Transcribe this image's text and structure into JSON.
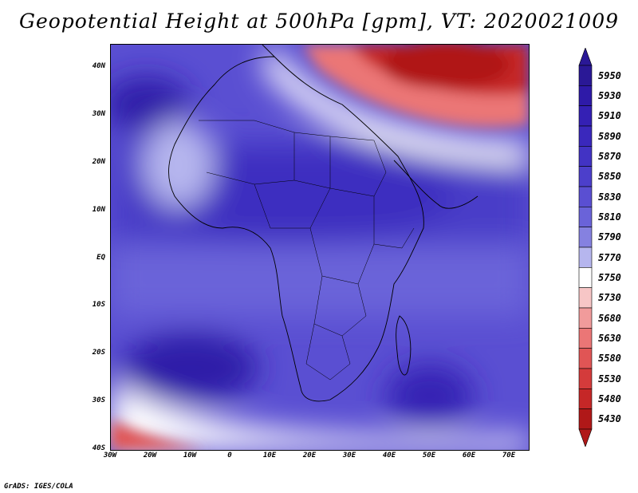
{
  "title": "Geopotential Height at 500hPa [gpm], VT: 2020021009",
  "map": {
    "variable": "Geopotential Height",
    "level": "500hPa",
    "units": "gpm",
    "valid_time": "2020021009",
    "lat_labels": [
      "40N",
      "30N",
      "20N",
      "10N",
      "EQ",
      "10S",
      "20S",
      "30S",
      "40S"
    ],
    "lon_labels": [
      "30W",
      "20W",
      "10W",
      "0",
      "10E",
      "20E",
      "30E",
      "40E",
      "50E",
      "60E",
      "70E"
    ],
    "features": {
      "highs": [
        "subtropical-high-north-atlantic",
        "subtropical-high-south-atlantic",
        "subtropical-high-south-indian"
      ],
      "lows": [
        "trough-middle-east-asia",
        "trough-south-of-south-atlantic"
      ]
    }
  },
  "colorbar": {
    "levels": [
      "5950",
      "5930",
      "5910",
      "5890",
      "5870",
      "5850",
      "5830",
      "5810",
      "5790",
      "5770",
      "5750",
      "5730",
      "5680",
      "5630",
      "5580",
      "5530",
      "5480",
      "5430"
    ],
    "colors": [
      "#2a1896",
      "#2e1aa8",
      "#3420b4",
      "#3a28bc",
      "#4233c4",
      "#4c3fcb",
      "#5a4fd2",
      "#6a63d9",
      "#8581e0",
      "#b6b6ee",
      "#ffffff",
      "#f7c6c6",
      "#f19b9b",
      "#eb7676",
      "#e05555",
      "#d43b3b",
      "#c52727",
      "#b01818"
    ]
  },
  "credit": "GrADS: IGES/COLA"
}
